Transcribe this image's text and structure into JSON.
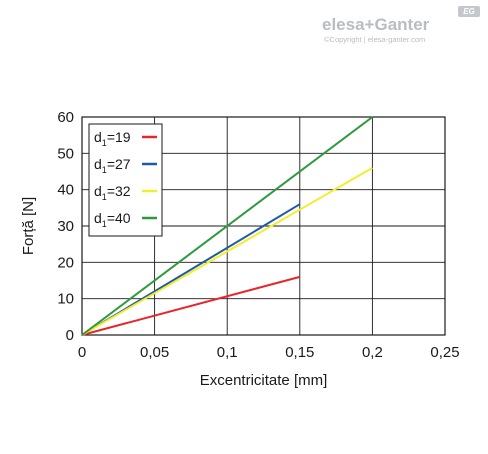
{
  "logo": {
    "brand": "elesa+Ganter",
    "badge": "EG",
    "copyright": "©Copyright | elesa-ganter.com"
  },
  "chart_data": {
    "type": "line",
    "title": "",
    "xlabel": "Excentricitate [mm]",
    "ylabel": "Forță [N]",
    "xlim": [
      0,
      0.25
    ],
    "ylim": [
      0,
      60
    ],
    "grid": true,
    "legend_position": "top-left",
    "x_ticks": [
      {
        "value": 0,
        "label": "0"
      },
      {
        "value": 0.05,
        "label": "0,05"
      },
      {
        "value": 0.1,
        "label": "0,1"
      },
      {
        "value": 0.15,
        "label": "0,15"
      },
      {
        "value": 0.2,
        "label": "0,2"
      },
      {
        "value": 0.25,
        "label": "0,25"
      }
    ],
    "y_ticks": [
      {
        "value": 0,
        "label": "0"
      },
      {
        "value": 10,
        "label": "10"
      },
      {
        "value": 20,
        "label": "20"
      },
      {
        "value": 30,
        "label": "30"
      },
      {
        "value": 40,
        "label": "40"
      },
      {
        "value": 50,
        "label": "50"
      },
      {
        "value": 60,
        "label": "60"
      }
    ],
    "series": [
      {
        "name": "d1=19",
        "name_main": "d",
        "name_sub": "1",
        "name_rest": "=19",
        "color": "#e8262a",
        "x": [
          0,
          0.15
        ],
        "y": [
          0,
          16
        ]
      },
      {
        "name": "d1=27",
        "name_main": "d",
        "name_sub": "1",
        "name_rest": "=27",
        "color": "#1f5aa8",
        "x": [
          0,
          0.15
        ],
        "y": [
          0,
          36
        ]
      },
      {
        "name": "d1=32",
        "name_main": "d",
        "name_sub": "1",
        "name_rest": "=32",
        "color": "#f3ee2c",
        "x": [
          0,
          0.2
        ],
        "y": [
          0,
          46
        ]
      },
      {
        "name": "d1=40",
        "name_main": "d",
        "name_sub": "1",
        "name_rest": "=40",
        "color": "#2e9a3c",
        "x": [
          0,
          0.2
        ],
        "y": [
          0,
          60
        ]
      }
    ]
  }
}
